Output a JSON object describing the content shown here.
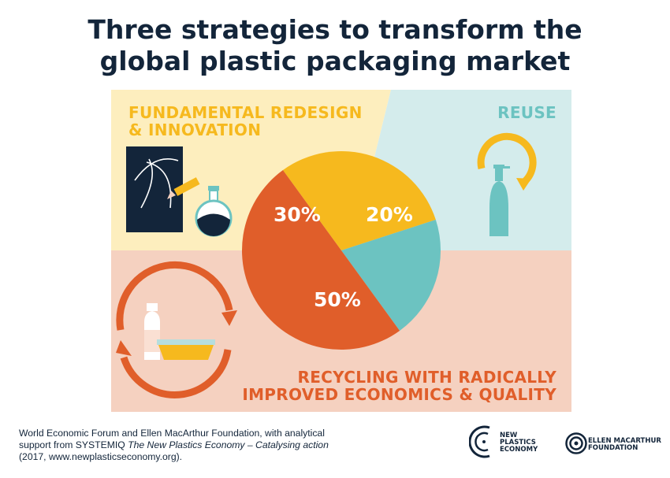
{
  "title": {
    "line1": "Three strategies to transform the",
    "line2": "global plastic packaging market"
  },
  "labels": {
    "redesign_line1": "FUNDAMENTAL REDESIGN",
    "redesign_line2": "& INNOVATION",
    "reuse": "REUSE",
    "recycle_line1": "RECYCLING WITH RADICALLY",
    "recycle_line2": "IMPROVED ECONOMICS & QUALITY"
  },
  "chart_data": {
    "type": "pie",
    "slices": [
      {
        "label": "FUNDAMENTAL REDESIGN & INNOVATION",
        "value": 30,
        "display": "30%",
        "color": "#f6b91e"
      },
      {
        "label": "REUSE",
        "value": 20,
        "display": "20%",
        "color": "#6cc3c1"
      },
      {
        "label": "RECYCLING WITH RADICALLY IMPROVED ECONOMICS & QUALITY",
        "value": 50,
        "display": "50%",
        "color": "#e05e2a"
      }
    ]
  },
  "footer": {
    "line1": "World Economic Forum and Ellen MacArthur Foundation, with analytical",
    "line2_pre": "support from SYSTEMIQ ",
    "line2_italic": "The New Plastics Economy – Catalysing action",
    "line3": "(2017, www.newplasticseconomy.org)."
  },
  "logos": {
    "npe": [
      "NEW",
      "PLASTICS",
      "ECONOMY"
    ],
    "emf": [
      "ELLEN MACARTHUR",
      "FOUNDATION"
    ]
  },
  "icons": [
    "chalkboard-icon",
    "pencil-icon",
    "flask-icon",
    "spray-bottle-icon",
    "reuse-arrows-icon",
    "recycle-arrows-icon",
    "milk-bottle-icon",
    "tray-icon"
  ],
  "colors": {
    "yellow": "#f6b91e",
    "teal": "#6cc3c1",
    "orange": "#e05e2a",
    "navy": "#13253a",
    "bg_yellow": "#fdeebe",
    "bg_teal": "#d4ecec",
    "bg_orange": "#f5d1c0"
  }
}
